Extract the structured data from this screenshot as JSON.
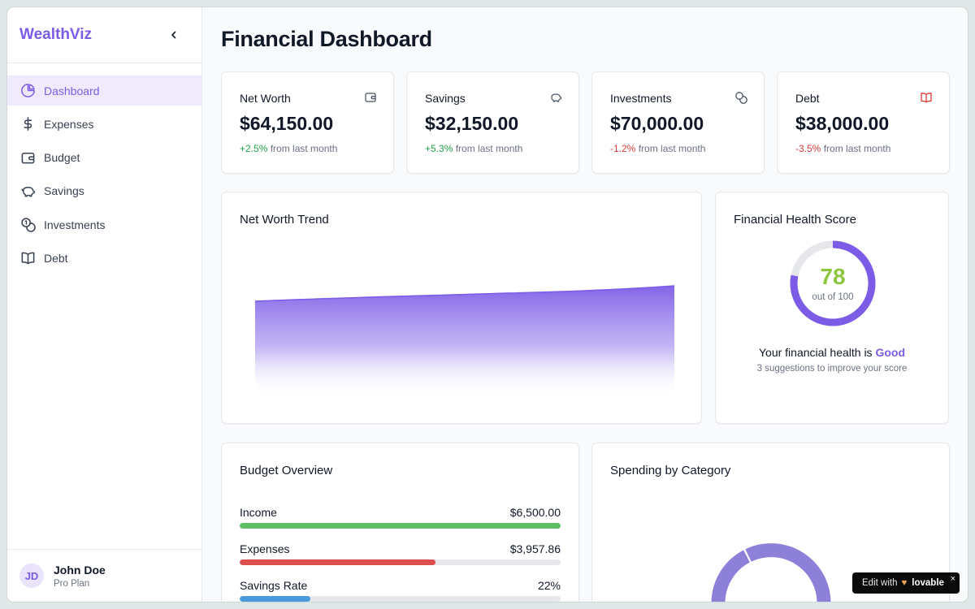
{
  "app": {
    "name": "WealthViz",
    "collapse_icon": "chevron-left-icon"
  },
  "sidebar": {
    "items": [
      {
        "label": "Dashboard",
        "icon": "pie-chart-icon",
        "active": true
      },
      {
        "label": "Expenses",
        "icon": "dollar-sign-icon"
      },
      {
        "label": "Budget",
        "icon": "wallet-icon"
      },
      {
        "label": "Savings",
        "icon": "piggy-bank-icon"
      },
      {
        "label": "Investments",
        "icon": "coins-icon"
      },
      {
        "label": "Debt",
        "icon": "book-open-icon"
      }
    ]
  },
  "user": {
    "initials": "JD",
    "name": "John Doe",
    "plan": "Pro Plan"
  },
  "page": {
    "title": "Financial Dashboard"
  },
  "stats": [
    {
      "label": "Net Worth",
      "value": "$64,150.00",
      "change": "+2.5%",
      "suffix": "from last month",
      "icon": "wallet-icon"
    },
    {
      "label": "Savings",
      "value": "$32,150.00",
      "change": "+5.3%",
      "suffix": "from last month",
      "icon": "piggy-bank-icon"
    },
    {
      "label": "Investments",
      "value": "$70,000.00",
      "change": "-1.2%",
      "suffix": "from last month",
      "icon": "coins-icon"
    },
    {
      "label": "Debt",
      "value": "$38,000.00",
      "change": "-3.5%",
      "suffix": "from last month",
      "icon": "book-open-icon"
    }
  ],
  "trend": {
    "title": "Net Worth Trend"
  },
  "health": {
    "title": "Financial Health Score",
    "score": "78",
    "score_fraction": 0.78,
    "out_of": "out of 100",
    "text_prefix": "Your financial health is",
    "rating": "Good",
    "suggestions": "3 suggestions to improve your score"
  },
  "budget": {
    "title": "Budget Overview",
    "rows": [
      {
        "label": "Income",
        "value": "$6,500.00",
        "fill": 1.0,
        "color": "#5cbd62"
      },
      {
        "label": "Expenses",
        "value": "$3,957.86",
        "fill": 0.61,
        "color": "#dc4f4f"
      },
      {
        "label": "Savings Rate",
        "value": "22%",
        "fill": 0.22,
        "color": "#4a9bdc"
      }
    ]
  },
  "spending": {
    "title": "Spending by Category"
  },
  "colors": {
    "accent": "#7c5ce6",
    "positive": "#22a34a",
    "negative": "#dc3b3b",
    "score": "#8cc63f"
  },
  "badge": {
    "prefix": "Edit with",
    "brand": "lovable",
    "close": "×"
  }
}
